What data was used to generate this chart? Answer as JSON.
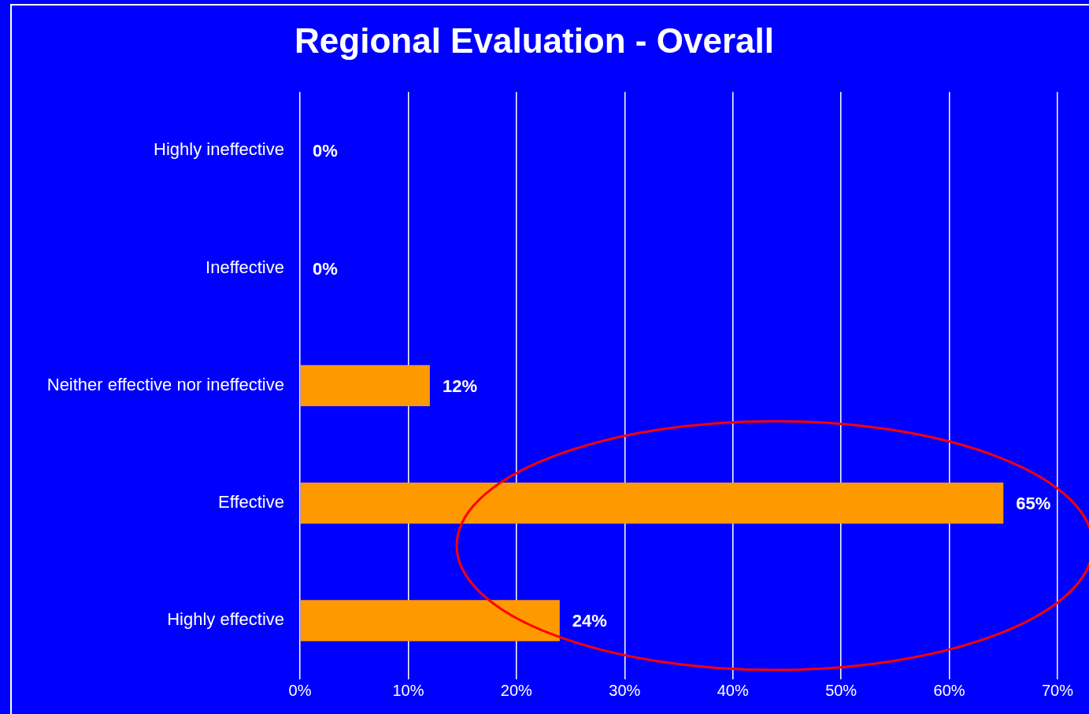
{
  "chart_data": {
    "type": "bar",
    "orientation": "horizontal",
    "title": "Regional Evaluation - Overall",
    "categories": [
      "Highly ineffective",
      "Ineffective",
      "Neither effective nor ineffective",
      "Effective",
      "Highly effective"
    ],
    "values": [
      0,
      0,
      12,
      65,
      24
    ],
    "color": "#ff9900",
    "xlim": [
      0,
      70
    ],
    "xticks": [
      {
        "value": 0,
        "label": "0%"
      },
      {
        "value": 10,
        "label": "10%"
      },
      {
        "value": 20,
        "label": "20%"
      },
      {
        "value": 30,
        "label": "30%"
      },
      {
        "value": 40,
        "label": "40%"
      },
      {
        "value": 50,
        "label": "50%"
      },
      {
        "value": 60,
        "label": "60%"
      },
      {
        "value": 70,
        "label": "70%"
      }
    ],
    "value_labels": [
      "0%",
      "0%",
      "12%",
      "65%",
      "24%"
    ],
    "grid": "x",
    "legend": false
  }
}
